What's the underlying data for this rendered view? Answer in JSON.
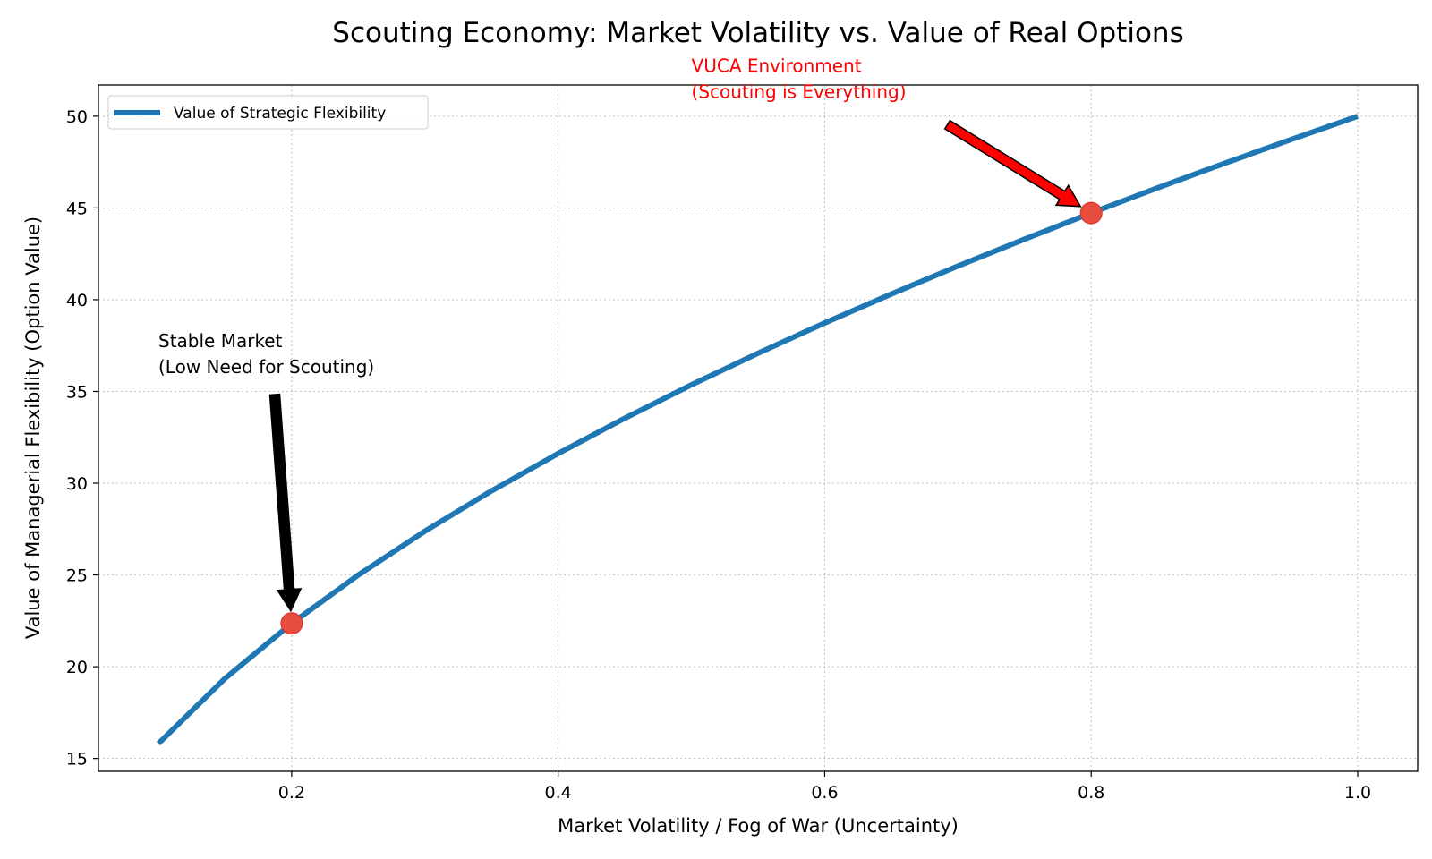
{
  "chart_data": {
    "type": "line",
    "title": "Scouting Economy: Market Volatility vs. Value of Real Options",
    "xlabel": "Market Volatility / Fog of War (Uncertainty)",
    "ylabel": "Value of Managerial Flexibility (Option Value)",
    "xlim": [
      0.055,
      1.045
    ],
    "ylim": [
      14.3,
      51.7
    ],
    "xticks": [
      "0.2",
      "0.4",
      "0.6",
      "0.8",
      "1.0"
    ],
    "yticks": [
      "15",
      "20",
      "25",
      "30",
      "35",
      "40",
      "45",
      "50"
    ],
    "grid": true,
    "legend_position": "upper left",
    "series": [
      {
        "name": "Value of Strategic Flexibility",
        "color": "#1f77b4",
        "x": [
          0.1,
          0.15,
          0.2,
          0.25,
          0.3,
          0.35,
          0.4,
          0.45,
          0.5,
          0.55,
          0.6,
          0.65,
          0.7,
          0.75,
          0.8,
          0.85,
          0.9,
          0.95,
          1.0
        ],
        "y": [
          15.81,
          19.36,
          22.36,
          25.0,
          27.39,
          29.58,
          31.62,
          33.54,
          35.36,
          37.08,
          38.73,
          40.31,
          41.83,
          43.3,
          44.72,
          46.1,
          47.43,
          48.73,
          50.0
        ]
      }
    ],
    "highlight_points": [
      {
        "x": 0.2,
        "y": 22.36,
        "color": "#e74c3c"
      },
      {
        "x": 0.8,
        "y": 44.72,
        "color": "#e74c3c"
      }
    ],
    "annotations": [
      {
        "lines": [
          "Stable Market",
          "(Low Need for Scouting)"
        ],
        "text_x": 0.1,
        "text_y": 36,
        "target_x": 0.2,
        "target_y": 22.36,
        "color": "#000000",
        "arrow_color": "#000000"
      },
      {
        "lines": [
          "VUCA Environment",
          "(Scouting is Everything)"
        ],
        "text_x": 0.5,
        "text_y": 51,
        "target_x": 0.8,
        "target_y": 44.72,
        "color": "#ff0000",
        "arrow_color": "#ff0000"
      }
    ]
  }
}
